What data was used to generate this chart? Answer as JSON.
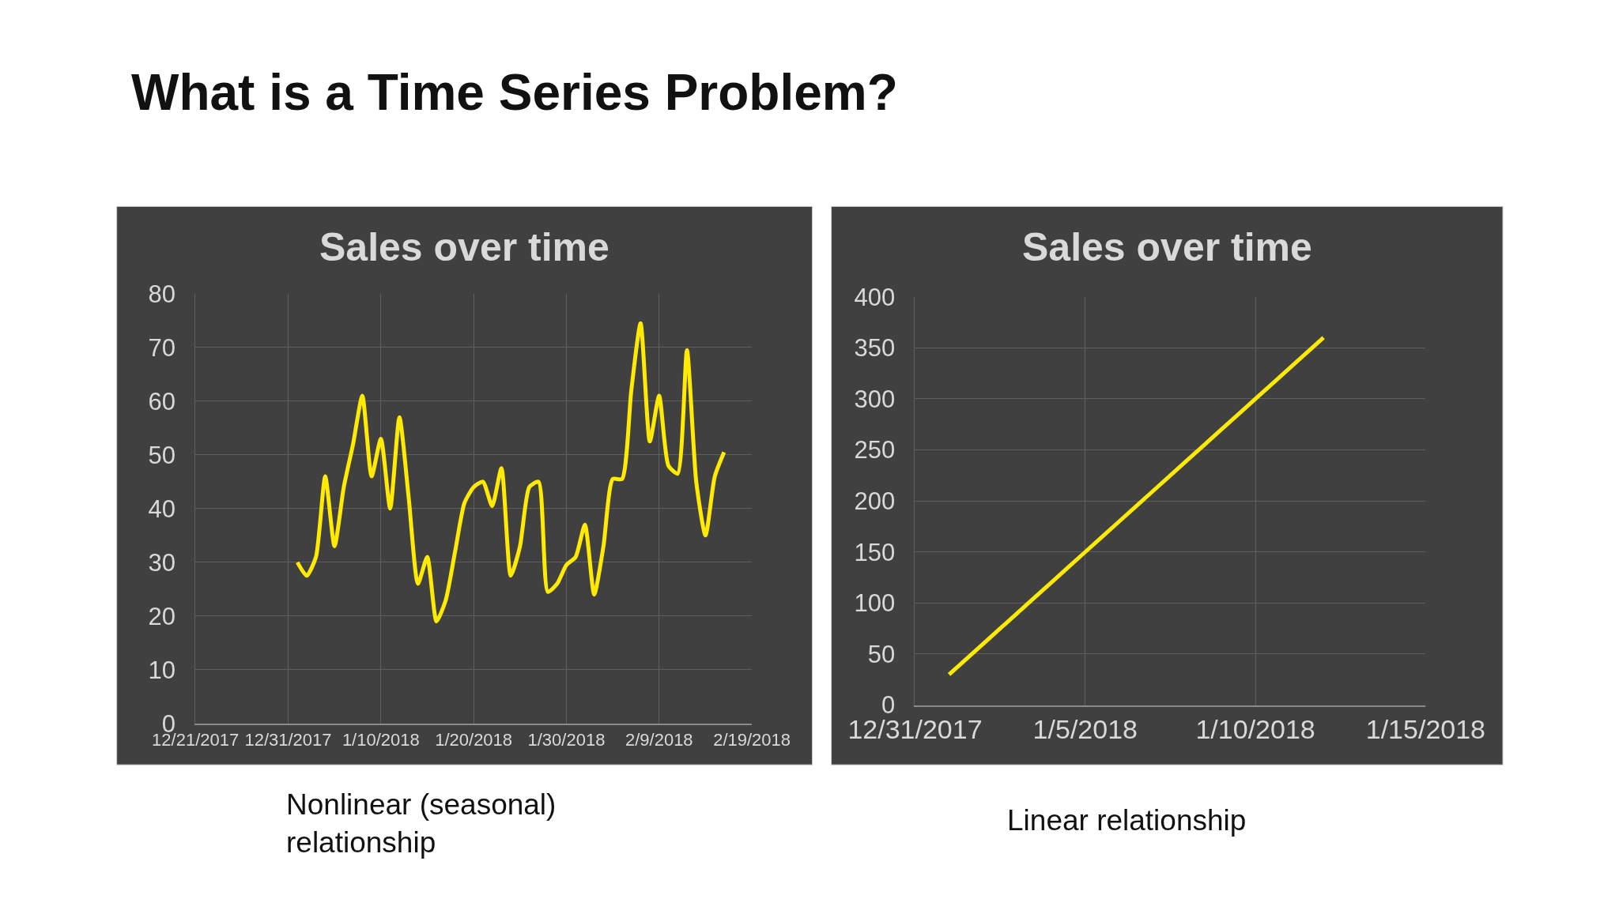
{
  "chart_data": [
    {
      "type": "line",
      "title": "Sales over time",
      "annotations": [
        "What is a Time Series Problem?",
        "Nonlinear (seasonal)\nrelationship"
      ],
      "x": [
        "2018-01-01",
        "2018-01-02",
        "2018-01-03",
        "2018-01-04",
        "2018-01-05",
        "2018-01-06",
        "2018-01-07",
        "2018-01-08",
        "2018-01-09",
        "2018-01-10",
        "2018-01-11",
        "2018-01-12",
        "2018-01-13",
        "2018-01-14",
        "2018-01-15",
        "2018-01-16",
        "2018-01-17",
        "2018-01-18",
        "2018-01-19",
        "2018-01-20",
        "2018-01-21",
        "2018-01-22",
        "2018-01-23",
        "2018-01-24",
        "2018-01-25",
        "2018-01-26",
        "2018-01-27",
        "2018-01-28",
        "2018-01-29",
        "2018-01-30",
        "2018-01-31",
        "2018-02-01",
        "2018-02-02",
        "2018-02-03",
        "2018-02-04",
        "2018-02-05",
        "2018-02-06",
        "2018-02-07",
        "2018-02-08",
        "2018-02-09",
        "2018-02-10",
        "2018-02-11",
        "2018-02-12",
        "2018-02-13",
        "2018-02-14",
        "2018-02-15",
        "2018-02-16"
      ],
      "series": [
        {
          "color": "#ffea00",
          "values": [
            30,
            27.5,
            31,
            46,
            33,
            44,
            52,
            61,
            46,
            53,
            40,
            57,
            42,
            26,
            31,
            19,
            23,
            32,
            41,
            44,
            45,
            40.5,
            47.5,
            27.5,
            33,
            44,
            45,
            24.5,
            26,
            29.5,
            31,
            37,
            24,
            33,
            45.5,
            45.5,
            62,
            74.5,
            52.5,
            61,
            48,
            46.5,
            69.5,
            45,
            35,
            46,
            50.5
          ]
        }
      ],
      "xlim": [
        "2017-12-21",
        "2018-02-19"
      ],
      "xticks": [
        {
          "value": "2017-12-21",
          "label": "12/21/2017"
        },
        {
          "value": "2017-12-31",
          "label": "12/31/2017"
        },
        {
          "value": "2018-01-10",
          "label": "1/10/2018"
        },
        {
          "value": "2018-01-20",
          "label": "1/20/2018"
        },
        {
          "value": "2018-01-30",
          "label": "1/30/2018"
        },
        {
          "value": "2018-02-09",
          "label": "2/9/2018"
        },
        {
          "value": "2018-02-19",
          "label": "2/19/2018"
        }
      ],
      "ylim": [
        0,
        80
      ],
      "yticks": [
        0,
        10,
        20,
        30,
        40,
        50,
        60,
        70,
        80
      ],
      "grid": true,
      "marker": "none",
      "line_style": "solid"
    },
    {
      "type": "line",
      "title": "Sales over time",
      "annotations": [
        "Linear relationship"
      ],
      "x": [
        "2018-01-01",
        "2018-01-02",
        "2018-01-03",
        "2018-01-04",
        "2018-01-05",
        "2018-01-06",
        "2018-01-07",
        "2018-01-08",
        "2018-01-09",
        "2018-01-10",
        "2018-01-11",
        "2018-01-12"
      ],
      "series": [
        {
          "color": "#ffea00",
          "values": [
            30,
            60,
            90,
            120,
            150,
            180,
            210,
            240,
            270,
            300,
            330,
            360
          ]
        }
      ],
      "xlim": [
        "2017-12-31",
        "2018-01-15"
      ],
      "xticks": [
        {
          "value": "2017-12-31",
          "label": "12/31/2017"
        },
        {
          "value": "2018-01-05",
          "label": "1/5/2018"
        },
        {
          "value": "2018-01-10",
          "label": "1/10/2018"
        },
        {
          "value": "2018-01-15",
          "label": "1/15/2018"
        }
      ],
      "ylim": [
        0,
        400
      ],
      "yticks": [
        0,
        50,
        100,
        150,
        200,
        250,
        300,
        350,
        400
      ],
      "grid": true,
      "marker": "none",
      "line_style": "solid"
    }
  ]
}
